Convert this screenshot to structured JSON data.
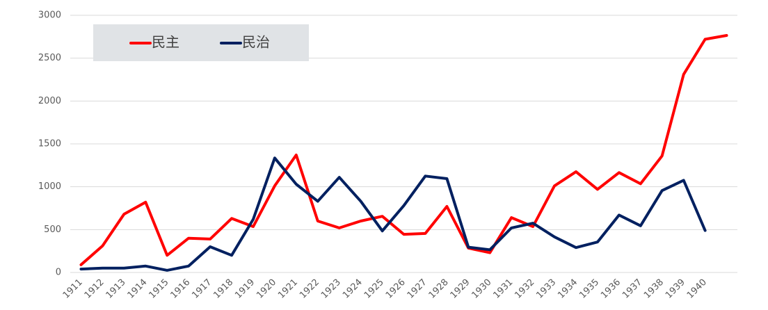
{
  "chart_data": {
    "type": "line",
    "categories": [
      "1911",
      "1912",
      "1913",
      "1914",
      "1915",
      "1916",
      "1917",
      "1918",
      "1919",
      "1920",
      "1921",
      "1922",
      "1923",
      "1924",
      "1925",
      "1926",
      "1927",
      "1928",
      "1929",
      "1930",
      "1931",
      "1932",
      "1933",
      "1934",
      "1935",
      "1936",
      "1937",
      "1938",
      "1939",
      "1940",
      null
    ],
    "series": [
      {
        "name": "民主",
        "color": "#ff0000",
        "values": [
          90,
          310,
          680,
          820,
          200,
          400,
          390,
          630,
          535,
          1010,
          1370,
          600,
          520,
          600,
          655,
          445,
          455,
          770,
          285,
          230,
          640,
          535,
          1010,
          1175,
          970,
          1165,
          1035,
          1360,
          2310,
          2720,
          2765
        ]
      },
      {
        "name": "民治",
        "color": "#002060",
        "values": [
          40,
          50,
          50,
          75,
          25,
          75,
          300,
          200,
          620,
          1335,
          1030,
          830,
          1110,
          830,
          485,
          780,
          1125,
          1095,
          295,
          265,
          520,
          575,
          415,
          290,
          355,
          670,
          545,
          955,
          1075,
          490,
          null
        ]
      }
    ],
    "ylim": [
      0,
      3000
    ],
    "yticks": [
      0,
      500,
      1000,
      1500,
      2000,
      2500,
      3000
    ],
    "grid": true,
    "legend": "upper left"
  }
}
